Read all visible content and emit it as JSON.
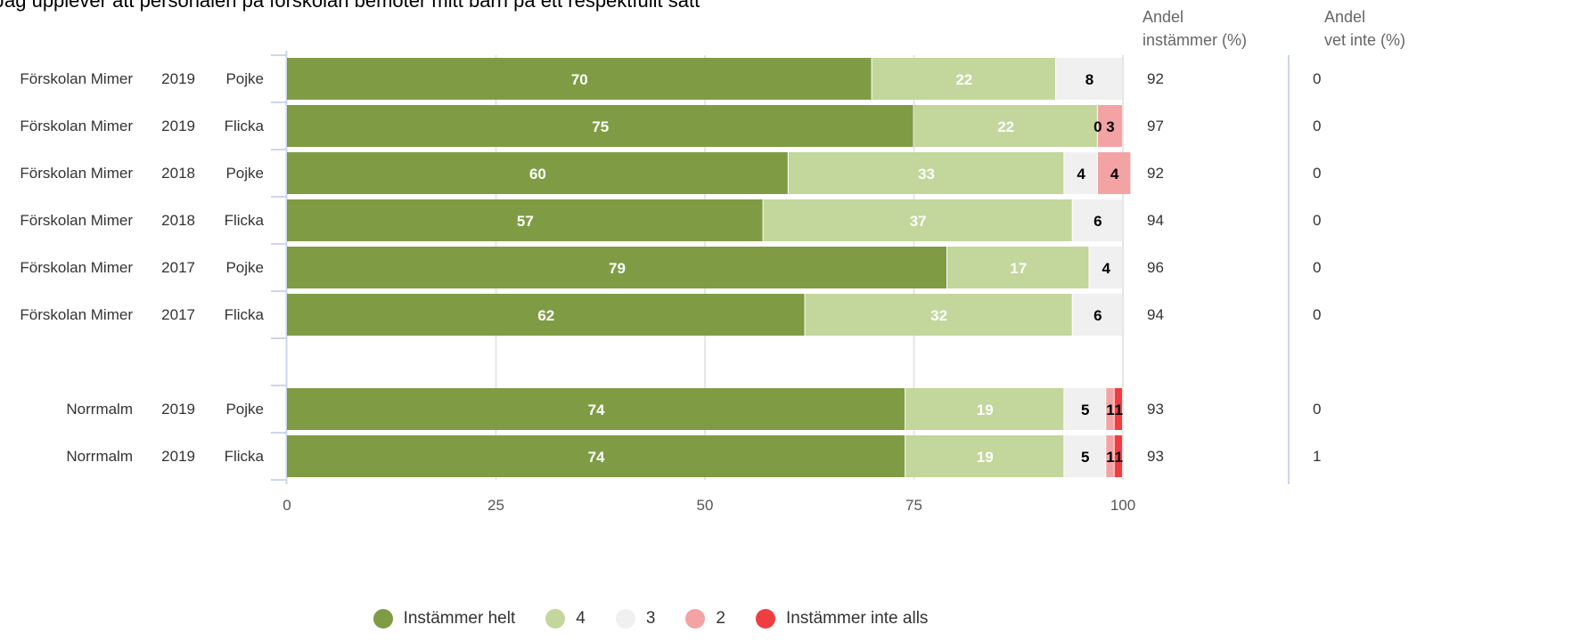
{
  "chart_data": {
    "type": "bar",
    "stacked": true,
    "orientation": "horizontal",
    "title": "Jag upplever att personalen på förskolan bemöter mitt barn på ett respektfullt sätt",
    "rows": [
      {
        "unit": "Förskolan Mimer",
        "year": "2019",
        "gender": "Pojke",
        "values": [
          70,
          22,
          8,
          0,
          0
        ],
        "andel_instammer": "92",
        "andel_vet_inte": "0"
      },
      {
        "unit": "Förskolan Mimer",
        "year": "2019",
        "gender": "Flicka",
        "values": [
          75,
          22,
          0,
          3,
          0
        ],
        "andel_instammer": "97",
        "andel_vet_inte": "0"
      },
      {
        "unit": "Förskolan Mimer",
        "year": "2018",
        "gender": "Pojke",
        "values": [
          60,
          33,
          4,
          4,
          0
        ],
        "andel_instammer": "92",
        "andel_vet_inte": "0"
      },
      {
        "unit": "Förskolan Mimer",
        "year": "2018",
        "gender": "Flicka",
        "values": [
          57,
          37,
          6,
          0,
          0
        ],
        "andel_instammer": "94",
        "andel_vet_inte": "0"
      },
      {
        "unit": "Förskolan Mimer",
        "year": "2017",
        "gender": "Pojke",
        "values": [
          79,
          17,
          4,
          0,
          0
        ],
        "andel_instammer": "96",
        "andel_vet_inte": "0"
      },
      {
        "unit": "Förskolan Mimer",
        "year": "2017",
        "gender": "Flicka",
        "values": [
          62,
          32,
          6,
          0,
          0
        ],
        "andel_instammer": "94",
        "andel_vet_inte": "0"
      },
      null,
      {
        "unit": "Norrmalm",
        "year": "2019",
        "gender": "Pojke",
        "values": [
          74,
          19,
          5,
          1,
          1
        ],
        "andel_instammer": "93",
        "andel_vet_inte": "0"
      },
      {
        "unit": "Norrmalm",
        "year": "2019",
        "gender": "Flicka",
        "values": [
          74,
          19,
          5,
          1,
          1
        ],
        "andel_instammer": "93",
        "andel_vet_inte": "1"
      }
    ],
    "series": [
      {
        "name": "Instämmer helt",
        "color": "#7f9c44",
        "label_color": "#ffffff"
      },
      {
        "name": "4",
        "color": "#c3d69b",
        "label_color": "#ffffff"
      },
      {
        "name": "3",
        "color": "#f0f0f0",
        "label_color": "#000000"
      },
      {
        "name": "2",
        "color": "#f4a3a5",
        "label_color": "#000000"
      },
      {
        "name": "Instämmer inte alls",
        "color": "#ef3e42",
        "label_color": "#ffffff"
      }
    ],
    "xlim": [
      0,
      100
    ],
    "xticks": [
      "0",
      "25",
      "50",
      "75",
      "100"
    ],
    "grid": true,
    "legend_position": "bottom"
  },
  "columns": {
    "andel_instammer_l1": "Andel",
    "andel_instammer_l2": "instämmer (%)",
    "andel_vet_inte_l1": "Andel",
    "andel_vet_inte_l2": "vet inte (%)"
  }
}
